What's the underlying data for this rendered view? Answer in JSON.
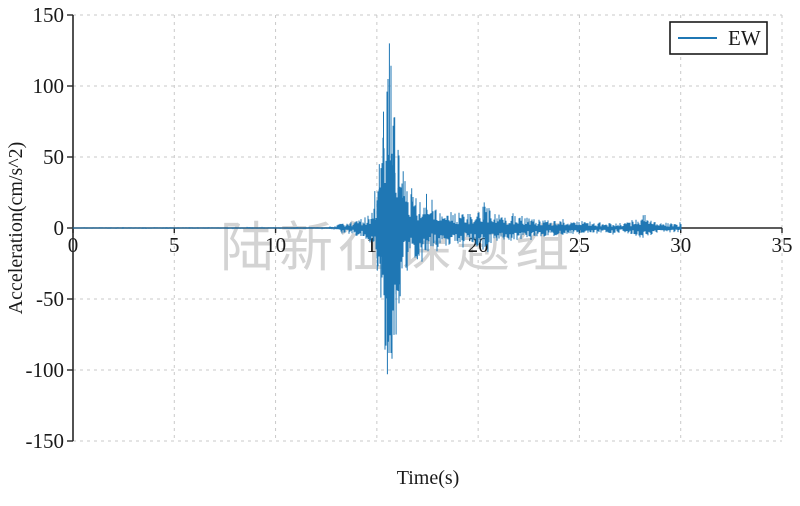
{
  "figure": {
    "background": "#ffffff",
    "text_color": "#1a1a1a",
    "grid_color": "#c9c9c9",
    "spine_color": "#262626"
  },
  "chart_data": {
    "type": "line",
    "title": "",
    "xlabel": "Time(s)",
    "ylabel": "Acceleration(cm/s^2)",
    "xlim": [
      0,
      35
    ],
    "ylim": [
      -150,
      150
    ],
    "xticks": [
      0,
      5,
      10,
      15,
      20,
      25,
      30,
      35
    ],
    "yticks": [
      -150,
      -100,
      -50,
      0,
      50,
      100,
      150
    ],
    "grid": "dashed",
    "legend": {
      "position": "upper right",
      "entries": [
        {
          "label": "EW",
          "color": "#1f77b4"
        }
      ]
    },
    "watermark": "陆新征课题组",
    "signal": {
      "description": "Earthquake ground-motion acceleration record, EW component; quiescent to ~13 s, strong burst near 15-16.5 s, long decaying coda ending at 30 s",
      "duration_s": 30,
      "peak_acceleration": {
        "t": 15.62,
        "value": 130
      },
      "min_acceleration": {
        "t": 15.52,
        "value": -103
      },
      "envelope_keypoints": [
        [
          0,
          0.5
        ],
        [
          12.6,
          0.6
        ],
        [
          13.0,
          2
        ],
        [
          13.3,
          3.5
        ],
        [
          13.7,
          4.5
        ],
        [
          14.0,
          5.5
        ],
        [
          14.3,
          7
        ],
        [
          14.6,
          9
        ],
        [
          14.8,
          13
        ],
        [
          15.0,
          22
        ],
        [
          15.15,
          40
        ],
        [
          15.3,
          72
        ],
        [
          15.45,
          98
        ],
        [
          15.55,
          115
        ],
        [
          15.65,
          126
        ],
        [
          15.75,
          102
        ],
        [
          15.9,
          78
        ],
        [
          16.05,
          60
        ],
        [
          16.2,
          46
        ],
        [
          16.4,
          34
        ],
        [
          16.6,
          27
        ],
        [
          16.9,
          22
        ],
        [
          17.2,
          19
        ],
        [
          17.5,
          17
        ],
        [
          17.8,
          15
        ],
        [
          18.2,
          13
        ],
        [
          18.6,
          12
        ],
        [
          19.0,
          11
        ],
        [
          19.4,
          10
        ],
        [
          19.8,
          11
        ],
        [
          20.1,
          14
        ],
        [
          20.35,
          17
        ],
        [
          20.6,
          13
        ],
        [
          20.9,
          10
        ],
        [
          21.3,
          9
        ],
        [
          21.7,
          9
        ],
        [
          22.1,
          8
        ],
        [
          22.5,
          7
        ],
        [
          23.0,
          6
        ],
        [
          23.5,
          5.5
        ],
        [
          24.0,
          5
        ],
        [
          24.5,
          4.5
        ],
        [
          25.0,
          4.5
        ],
        [
          25.5,
          4
        ],
        [
          26.0,
          4
        ],
        [
          26.5,
          3.5
        ],
        [
          27.0,
          3.5
        ],
        [
          27.4,
          4
        ],
        [
          27.8,
          6
        ],
        [
          28.1,
          7.5
        ],
        [
          28.4,
          6
        ],
        [
          28.7,
          4.5
        ],
        [
          29.1,
          4
        ],
        [
          29.5,
          3.5
        ],
        [
          30,
          3
        ]
      ],
      "key_spikes": [
        [
          14.9,
          26
        ],
        [
          15.02,
          -30
        ],
        [
          15.12,
          45
        ],
        [
          15.2,
          -49
        ],
        [
          15.33,
          82
        ],
        [
          15.42,
          -65
        ],
        [
          15.52,
          -103
        ],
        [
          15.62,
          130
        ],
        [
          15.7,
          -88
        ],
        [
          15.8,
          72
        ],
        [
          15.88,
          78
        ],
        [
          15.95,
          -75
        ],
        [
          16.05,
          55
        ],
        [
          16.15,
          -48
        ],
        [
          16.3,
          40
        ],
        [
          16.5,
          -30
        ],
        [
          16.72,
          28
        ],
        [
          17.0,
          -22
        ],
        [
          17.45,
          24
        ],
        [
          20.3,
          18
        ],
        [
          20.48,
          -17
        ],
        [
          28.15,
          9
        ]
      ]
    }
  }
}
